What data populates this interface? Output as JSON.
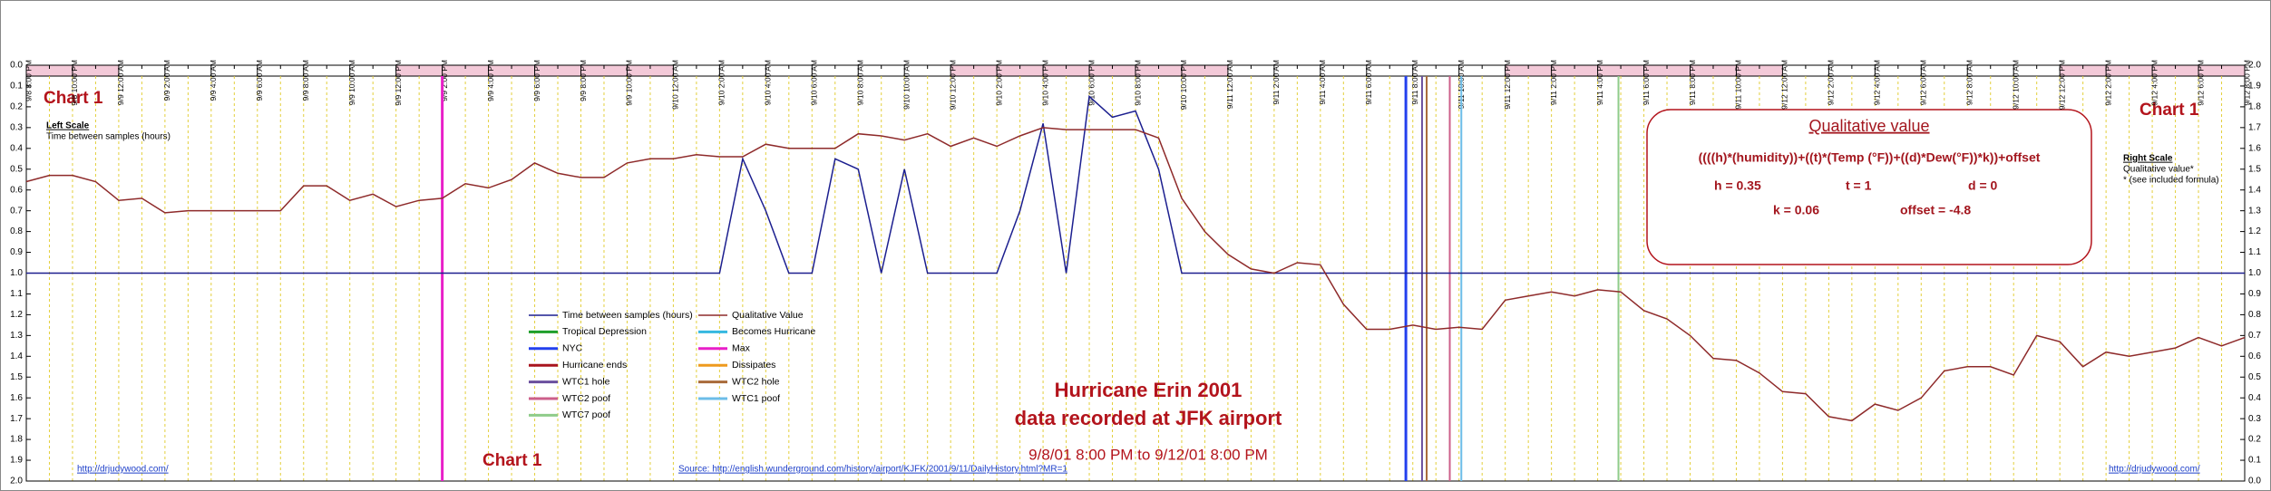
{
  "chart_data": {
    "type": "line",
    "categories": [
      "9/8 8:00 PM",
      null,
      "9/8 10:00 PM",
      null,
      "9/9 12:00 AM",
      null,
      "9/9 2:00 AM",
      null,
      "9/9 4:00 AM",
      null,
      "9/9 6:00 AM",
      null,
      "9/9 8:00 AM",
      null,
      "9/9 10:00 AM",
      null,
      "9/9 12:00 PM",
      null,
      "9/9 2:00 PM",
      null,
      "9/9 4:00 PM",
      null,
      "9/9 6:00 PM",
      null,
      "9/9 8:00 PM",
      null,
      "9/9 10:00 PM",
      null,
      "9/10 12:00 AM",
      null,
      "9/10 2:00 AM",
      null,
      "9/10 4:00 AM",
      null,
      "9/10 6:00 AM",
      null,
      "9/10 8:00 AM",
      null,
      "9/10 10:00 AM",
      null,
      "9/10 12:00 PM",
      null,
      "9/10 2:00 PM",
      null,
      "9/10 4:00 PM",
      null,
      "9/10 6:00 PM",
      null,
      "9/10 8:00 PM",
      null,
      "9/10 10:00 PM",
      null,
      "9/11 12:00 AM",
      null,
      "9/11 2:00 AM",
      null,
      "9/11 4:00 AM",
      null,
      "9/11 6:00 AM",
      null,
      "9/11 8:00 AM",
      null,
      "9/11 10:00 AM",
      null,
      "9/11 12:00 PM",
      null,
      "9/11 2:00 PM",
      null,
      "9/11 4:00 PM",
      null,
      "9/11 6:00 PM",
      null,
      "9/11 8:00 PM",
      null,
      "9/11 10:00 PM",
      null,
      "9/12 12:00 AM",
      null,
      "9/12 2:00 AM",
      null,
      "9/12 4:00 AM",
      null,
      "9/12 6:00 AM",
      null,
      "9/12 8:00 AM",
      null,
      "9/12 10:00 AM",
      null,
      "9/12 12:00 PM",
      null,
      "9/12 2:00 PM",
      null,
      "9/12 4:00 PM",
      null,
      "9/12 6:00 PM",
      null,
      "9/12 8:00 PM"
    ],
    "series": [
      {
        "name": "Time between samples (hours)",
        "color": "#1c1f8f",
        "axis": "y",
        "values": [
          1,
          1,
          1,
          1,
          1,
          1,
          1,
          1,
          1,
          1,
          1,
          1,
          1,
          1,
          1,
          1,
          1,
          1,
          1,
          1,
          1,
          1,
          1,
          1,
          1,
          1,
          1,
          1,
          1,
          1,
          1,
          0.45,
          0.7,
          1,
          1,
          0.45,
          0.5,
          1,
          0.5,
          1,
          1,
          1,
          1,
          0.7,
          0.28,
          1,
          0.15,
          0.25,
          0.22,
          0.5,
          1,
          1,
          1,
          1,
          1,
          1,
          1,
          1,
          1,
          1,
          1,
          1,
          1,
          1,
          1,
          1,
          1,
          1,
          1,
          1,
          1,
          1,
          1,
          1,
          1,
          1,
          1,
          1,
          1,
          1,
          1,
          1,
          1,
          1,
          1,
          1,
          1,
          1,
          1,
          1,
          1,
          1,
          1,
          1,
          1,
          1,
          1
        ]
      },
      {
        "name": "Qualitative Value",
        "color": "#8e2a2a",
        "axis": "y2",
        "values": [
          1.44,
          1.47,
          1.47,
          1.44,
          1.35,
          1.36,
          1.29,
          1.3,
          1.3,
          1.3,
          1.3,
          1.3,
          1.42,
          1.42,
          1.35,
          1.38,
          1.32,
          1.35,
          1.36,
          1.43,
          1.41,
          1.45,
          1.53,
          1.48,
          1.46,
          1.46,
          1.53,
          1.55,
          1.55,
          1.57,
          1.56,
          1.56,
          1.62,
          1.6,
          1.6,
          1.6,
          1.67,
          1.66,
          1.64,
          1.67,
          1.61,
          1.65,
          1.61,
          1.66,
          1.7,
          1.69,
          1.69,
          1.69,
          1.69,
          1.65,
          1.36,
          1.2,
          1.09,
          1.02,
          1,
          1.05,
          1.04,
          0.85,
          0.73,
          0.73,
          0.75,
          0.73,
          0.74,
          0.73,
          0.87,
          0.89,
          0.91,
          0.89,
          0.92,
          0.91,
          0.82,
          0.78,
          0.7,
          0.59,
          0.58,
          0.52,
          0.43,
          0.42,
          0.31,
          0.29,
          0.37,
          0.34,
          0.4,
          0.53,
          0.55,
          0.55,
          0.51,
          0.7,
          0.67,
          0.55,
          0.62,
          0.6,
          0.62,
          0.64,
          0.69,
          0.65,
          0.69
        ]
      }
    ],
    "events": [
      {
        "name": "Tropical Depression",
        "color": "#1e9e2a"
      },
      {
        "name": "Becomes Hurricane",
        "color": "#35b8e0"
      },
      {
        "name": "NYC",
        "color": "#2340ee",
        "at": 59.7
      },
      {
        "name": "Max",
        "color": "#e81fc8",
        "at": 18
      },
      {
        "name": "Hurricane ends",
        "color": "#a8141e"
      },
      {
        "name": "Dissipates",
        "color": "#ee9a1e"
      },
      {
        "name": "WTC1 hole",
        "color": "#6a4f9e",
        "at": 60.4
      },
      {
        "name": "WTC2 hole",
        "color": "#a86a3a",
        "at": 60.6
      },
      {
        "name": "WTC2 poof",
        "color": "#cc5f8a",
        "at": 61.6
      },
      {
        "name": "WTC1 poof",
        "color": "#6cbde8",
        "at": 62.1
      },
      {
        "name": "WTC7 poof",
        "color": "#8fcc8a",
        "at": 68.9
      }
    ],
    "ylim": [
      2,
      0
    ],
    "yticks": [
      {
        "value": 0,
        "label": "0.0"
      },
      0.1,
      0.2,
      0.3,
      0.4,
      0.5,
      0.6,
      0.7,
      0.8,
      0.9,
      {
        "value": 1,
        "label": "1.0"
      },
      1.1,
      1.2,
      1.3,
      1.4,
      1.5,
      1.6,
      1.7,
      1.8,
      1.9,
      {
        "value": 2,
        "label": "2.0"
      }
    ],
    "y2lim": [
      0,
      2
    ],
    "y2ticks": [
      {
        "value": 0,
        "label": "0.0"
      },
      0.1,
      0.2,
      0.3,
      0.4,
      0.5,
      0.6,
      0.7,
      0.8,
      0.9,
      {
        "value": 1,
        "label": "1.0"
      },
      1.1,
      1.2,
      1.3,
      1.4,
      1.5,
      1.6,
      1.7,
      1.8,
      1.9,
      {
        "value": 2,
        "label": "2.0"
      }
    ],
    "grid": true,
    "chart_label": "Chart 1",
    "left_scale": {
      "title": "Left Scale",
      "text": "Time between samples (hours)"
    },
    "right_scale": {
      "title": "Right Scale",
      "text": "Qualitative value*",
      "note": "* (see included formula)"
    },
    "formula": {
      "title": "Qualitative value",
      "expression": "((((h)*(humidity))+((t)*(Temp (°F))+((d)*Dew(°F))*k))+offset",
      "params": [
        "h = 0.35",
        "t = 1",
        "d = 0",
        "k = 0.06",
        "offset = -4.8"
      ]
    },
    "title": "Hurricane Erin 2001",
    "subtitle": "data recorded at JFK airport",
    "date_range": "9/8/01 8:00 PM to 9/12/01 8:00 PM",
    "links": {
      "left": "http://drjudywood.com/",
      "source": "Source:  http://english.wunderground.com/history/airport/KJFK/2001/9/11/DailyHistory.html?MR=1",
      "right": "http://drjudywood.com/"
    }
  }
}
